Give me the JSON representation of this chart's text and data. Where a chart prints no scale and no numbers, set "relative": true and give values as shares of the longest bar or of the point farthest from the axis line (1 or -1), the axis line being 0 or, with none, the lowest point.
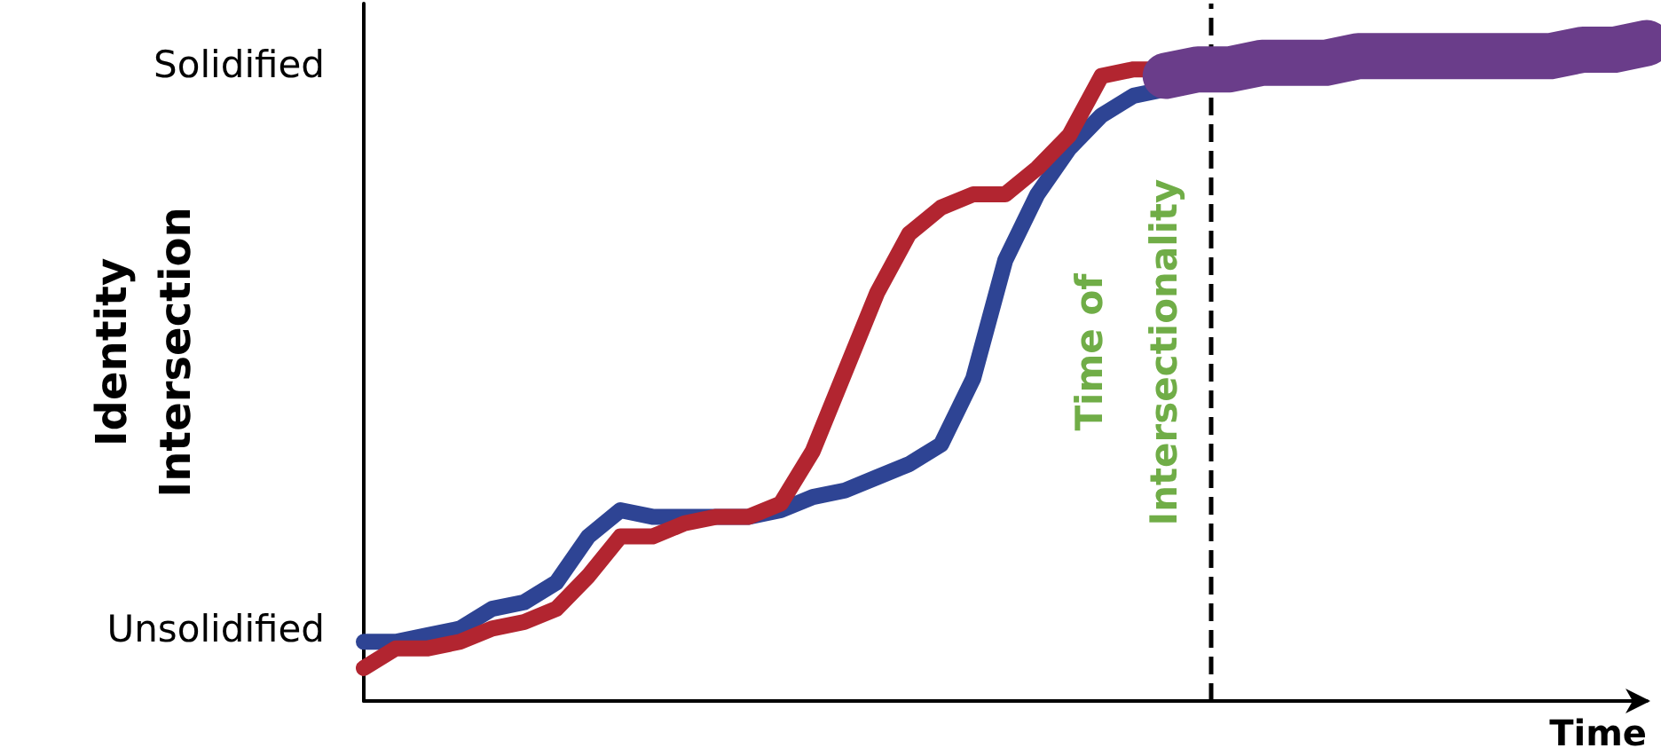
{
  "chart_data": {
    "type": "line",
    "xlabel": "Time",
    "ylabel": "Identity\nIntersection",
    "relative": true,
    "categories": [
      null,
      null,
      null,
      null,
      null,
      null,
      null,
      null,
      null,
      null,
      null,
      null,
      null,
      null,
      null,
      null,
      null,
      null,
      null,
      null,
      null,
      null,
      null,
      null,
      null,
      null,
      null,
      null,
      null,
      null,
      null,
      null,
      null,
      null,
      null,
      null,
      null,
      null,
      null,
      null,
      null
    ],
    "line_style": "solid",
    "annotations": [
      "Solidified",
      "Unsolidified",
      "Time of\nIntersectionality"
    ],
    "series": [
      {
        "color": "#2e4494",
        "values": [
          0.09,
          0.09,
          0.1,
          0.11,
          0.14,
          0.15,
          0.18,
          0.25,
          0.29,
          0.28,
          0.28,
          0.28,
          0.28,
          0.29,
          0.31,
          0.32,
          0.34,
          0.36,
          0.39,
          0.49,
          0.67,
          0.77,
          0.84,
          0.89,
          0.92,
          0.93,
          null,
          null,
          null,
          null,
          null,
          null,
          null,
          null,
          null,
          null,
          null,
          null,
          null,
          null,
          null
        ]
      },
      {
        "color": "#b22530",
        "values": [
          0.05,
          0.08,
          0.08,
          0.09,
          0.11,
          0.12,
          0.14,
          0.19,
          0.25,
          0.25,
          0.27,
          0.28,
          0.28,
          0.3,
          0.38,
          0.5,
          0.62,
          0.71,
          0.75,
          0.77,
          0.77,
          0.81,
          0.86,
          0.95,
          0.96,
          0.96,
          null,
          null,
          null,
          null,
          null,
          null,
          null,
          null,
          null,
          null,
          null,
          null,
          null,
          null,
          null
        ]
      },
      {
        "color": "#6a3d8a",
        "values": [
          null,
          null,
          null,
          null,
          null,
          null,
          null,
          null,
          null,
          null,
          null,
          null,
          null,
          null,
          null,
          null,
          null,
          null,
          null,
          null,
          null,
          null,
          null,
          null,
          null,
          0.95,
          0.96,
          0.96,
          0.97,
          0.97,
          0.97,
          0.98,
          0.98,
          0.98,
          0.98,
          0.98,
          0.98,
          0.98,
          0.99,
          0.99,
          1
        ]
      }
    ]
  }
}
